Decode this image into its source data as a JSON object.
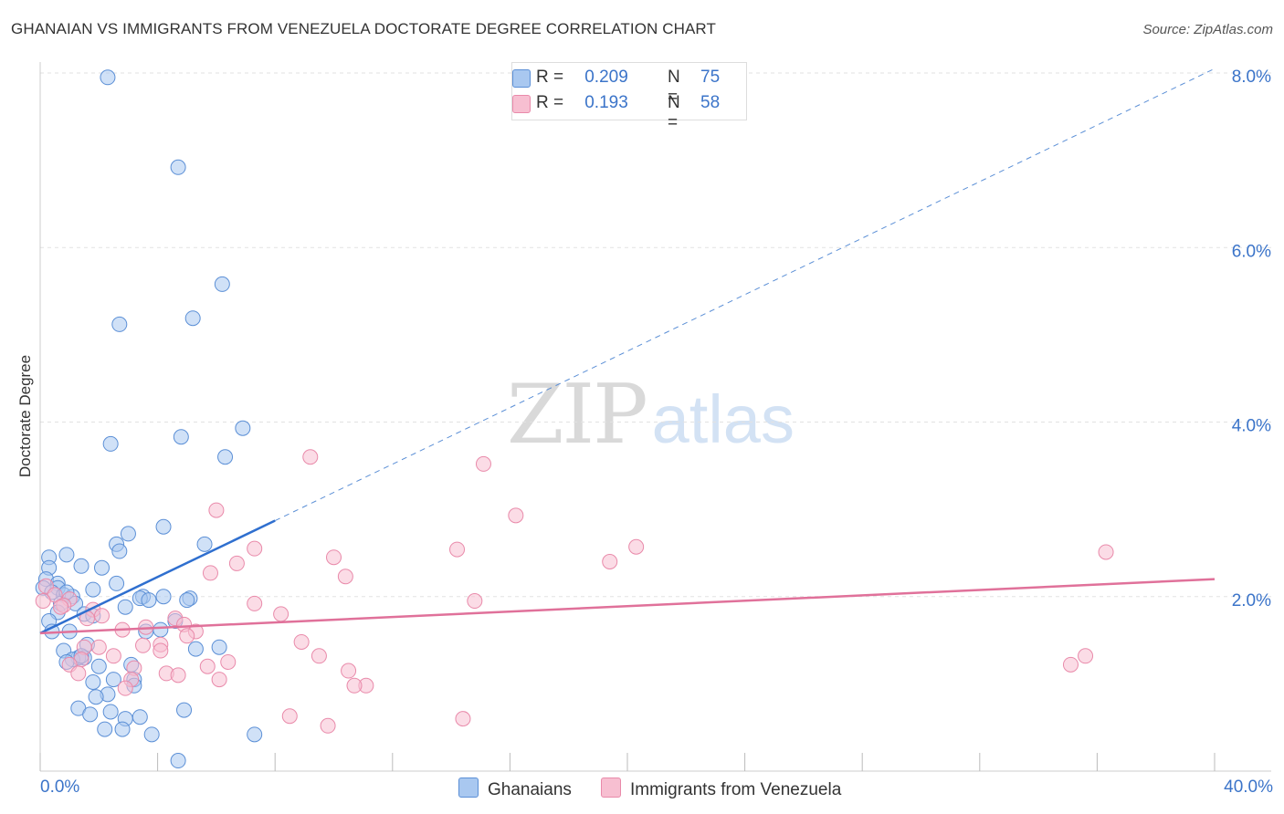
{
  "header": {
    "title": "GHANAIAN VS IMMIGRANTS FROM VENEZUELA DOCTORATE DEGREE CORRELATION CHART",
    "source": "Source: ZipAtlas.com"
  },
  "watermark": {
    "zip": "ZIP",
    "atlas": "atlas"
  },
  "legend_top": {
    "rows": [
      {
        "r_label": "R =",
        "r_value": "0.209",
        "n_label": "N =",
        "n_value": "75"
      },
      {
        "r_label": "R =",
        "r_value": "0.193",
        "n_label": "N =",
        "n_value": "58"
      }
    ]
  },
  "legend_bottom": {
    "series1": "Ghanaians",
    "series2": "Immigrants from Venezuela"
  },
  "colors": {
    "blue_fill": "#a9c8f0",
    "blue_stroke": "#5b8fd6",
    "blue_line": "#2f6fcf",
    "pink_fill": "#f7bfd1",
    "pink_stroke": "#e98aaa",
    "pink_line": "#e0719a",
    "axis_text": "#3b74c9",
    "grid": "#e2e2e2"
  },
  "chart_data": {
    "type": "scatter",
    "title": "GHANAIAN VS IMMIGRANTS FROM VENEZUELA DOCTORATE DEGREE CORRELATION CHART",
    "xlabel": "",
    "ylabel": "Doctorate Degree",
    "xlim": [
      0,
      40
    ],
    "ylim": [
      0,
      8.2
    ],
    "x_tick_labels": [
      "0.0%",
      "40.0%"
    ],
    "y_ticks": [
      2,
      4,
      6,
      8
    ],
    "y_tick_labels": [
      "2.0%",
      "4.0%",
      "6.0%",
      "8.0%"
    ],
    "grid": true,
    "series": [
      {
        "name": "Ghanaians",
        "R": 0.209,
        "N": 75,
        "trend": {
          "x0": 0,
          "y0": 1.58,
          "x1": 8,
          "y1": 2.87,
          "dashed_to_x": 40,
          "dashed_to_y": 8.05
        },
        "points": [
          [
            2.3,
            7.95
          ],
          [
            4.7,
            6.92
          ],
          [
            6.2,
            5.58
          ],
          [
            5.2,
            5.19
          ],
          [
            2.7,
            5.12
          ],
          [
            6.9,
            3.93
          ],
          [
            4.8,
            3.83
          ],
          [
            2.4,
            3.75
          ],
          [
            6.3,
            3.6
          ],
          [
            4.2,
            2.8
          ],
          [
            3,
            2.72
          ],
          [
            2.6,
            2.6
          ],
          [
            5.6,
            2.6
          ],
          [
            2.7,
            2.52
          ],
          [
            0.9,
            2.48
          ],
          [
            0.3,
            2.45
          ],
          [
            0.3,
            2.33
          ],
          [
            1.4,
            2.35
          ],
          [
            2.1,
            2.33
          ],
          [
            0.2,
            2.2
          ],
          [
            0.6,
            2.15
          ],
          [
            2.6,
            2.15
          ],
          [
            0.1,
            2.1
          ],
          [
            0.6,
            2.1
          ],
          [
            1.8,
            2.08
          ],
          [
            0.4,
            2.05
          ],
          [
            0.8,
            2.02
          ],
          [
            1.1,
            2.0
          ],
          [
            3.5,
            2.0
          ],
          [
            3.4,
            1.98
          ],
          [
            4.2,
            2.0
          ],
          [
            3.7,
            1.96
          ],
          [
            5.1,
            1.98
          ],
          [
            5,
            1.96
          ],
          [
            0.7,
            1.92
          ],
          [
            1.2,
            1.92
          ],
          [
            2.9,
            1.88
          ],
          [
            0.6,
            1.82
          ],
          [
            1.5,
            1.8
          ],
          [
            1.8,
            1.78
          ],
          [
            0.3,
            1.72
          ],
          [
            4.6,
            1.72
          ],
          [
            4.1,
            1.62
          ],
          [
            0.4,
            1.6
          ],
          [
            1,
            1.6
          ],
          [
            3.6,
            1.6
          ],
          [
            1.6,
            1.45
          ],
          [
            5.3,
            1.4
          ],
          [
            6.1,
            1.42
          ],
          [
            0.8,
            1.38
          ],
          [
            1.5,
            1.3
          ],
          [
            1.3,
            1.3
          ],
          [
            1.1,
            1.28
          ],
          [
            1.4,
            1.32
          ],
          [
            2,
            1.2
          ],
          [
            3.1,
            1.22
          ],
          [
            0.9,
            1.25
          ],
          [
            2.5,
            1.05
          ],
          [
            3.2,
            1.05
          ],
          [
            1.8,
            1.02
          ],
          [
            3.2,
            0.98
          ],
          [
            2.3,
            0.88
          ],
          [
            1.9,
            0.85
          ],
          [
            4.9,
            0.7
          ],
          [
            1.3,
            0.72
          ],
          [
            2.4,
            0.68
          ],
          [
            1.7,
            0.65
          ],
          [
            2.9,
            0.6
          ],
          [
            3.4,
            0.62
          ],
          [
            2.8,
            0.48
          ],
          [
            2.2,
            0.48
          ],
          [
            3.8,
            0.42
          ],
          [
            7.3,
            0.42
          ],
          [
            4.7,
            0.12
          ],
          [
            0.9,
            2.05
          ]
        ]
      },
      {
        "name": "Immigrants from Venezuela",
        "R": 0.193,
        "N": 58,
        "trend": {
          "x0": 0,
          "y0": 1.58,
          "x1": 40,
          "y1": 2.2
        },
        "points": [
          [
            9.2,
            3.6
          ],
          [
            15.1,
            3.52
          ],
          [
            6,
            2.99
          ],
          [
            16.2,
            2.93
          ],
          [
            20.3,
            2.57
          ],
          [
            7.3,
            2.55
          ],
          [
            14.2,
            2.54
          ],
          [
            36.3,
            2.51
          ],
          [
            10,
            2.45
          ],
          [
            19.4,
            2.4
          ],
          [
            6.7,
            2.38
          ],
          [
            5.8,
            2.27
          ],
          [
            10.4,
            2.23
          ],
          [
            0.2,
            2.12
          ],
          [
            0.5,
            2.02
          ],
          [
            0.1,
            1.95
          ],
          [
            1,
            1.97
          ],
          [
            0.8,
            1.9
          ],
          [
            7.3,
            1.92
          ],
          [
            14.8,
            1.95
          ],
          [
            0.7,
            1.88
          ],
          [
            1.8,
            1.85
          ],
          [
            8.2,
            1.8
          ],
          [
            2.1,
            1.78
          ],
          [
            1.6,
            1.75
          ],
          [
            4.6,
            1.75
          ],
          [
            4.9,
            1.68
          ],
          [
            3.6,
            1.65
          ],
          [
            2.8,
            1.62
          ],
          [
            5.3,
            1.6
          ],
          [
            5,
            1.55
          ],
          [
            8.9,
            1.48
          ],
          [
            4.1,
            1.45
          ],
          [
            3.5,
            1.44
          ],
          [
            2,
            1.42
          ],
          [
            1.5,
            1.42
          ],
          [
            4.1,
            1.38
          ],
          [
            9.5,
            1.32
          ],
          [
            2.5,
            1.32
          ],
          [
            1.4,
            1.28
          ],
          [
            6.4,
            1.25
          ],
          [
            5.7,
            1.2
          ],
          [
            1,
            1.22
          ],
          [
            3.2,
            1.18
          ],
          [
            6.1,
            1.05
          ],
          [
            10.5,
            1.15
          ],
          [
            4.3,
            1.12
          ],
          [
            4.7,
            1.1
          ],
          [
            1.3,
            1.12
          ],
          [
            3.1,
            1.05
          ],
          [
            2.9,
            0.95
          ],
          [
            11.1,
            0.98
          ],
          [
            10.7,
            0.98
          ],
          [
            35.6,
            1.32
          ],
          [
            35.1,
            1.22
          ],
          [
            8.5,
            0.63
          ],
          [
            14.4,
            0.6
          ],
          [
            9.8,
            0.52
          ]
        ]
      }
    ]
  }
}
